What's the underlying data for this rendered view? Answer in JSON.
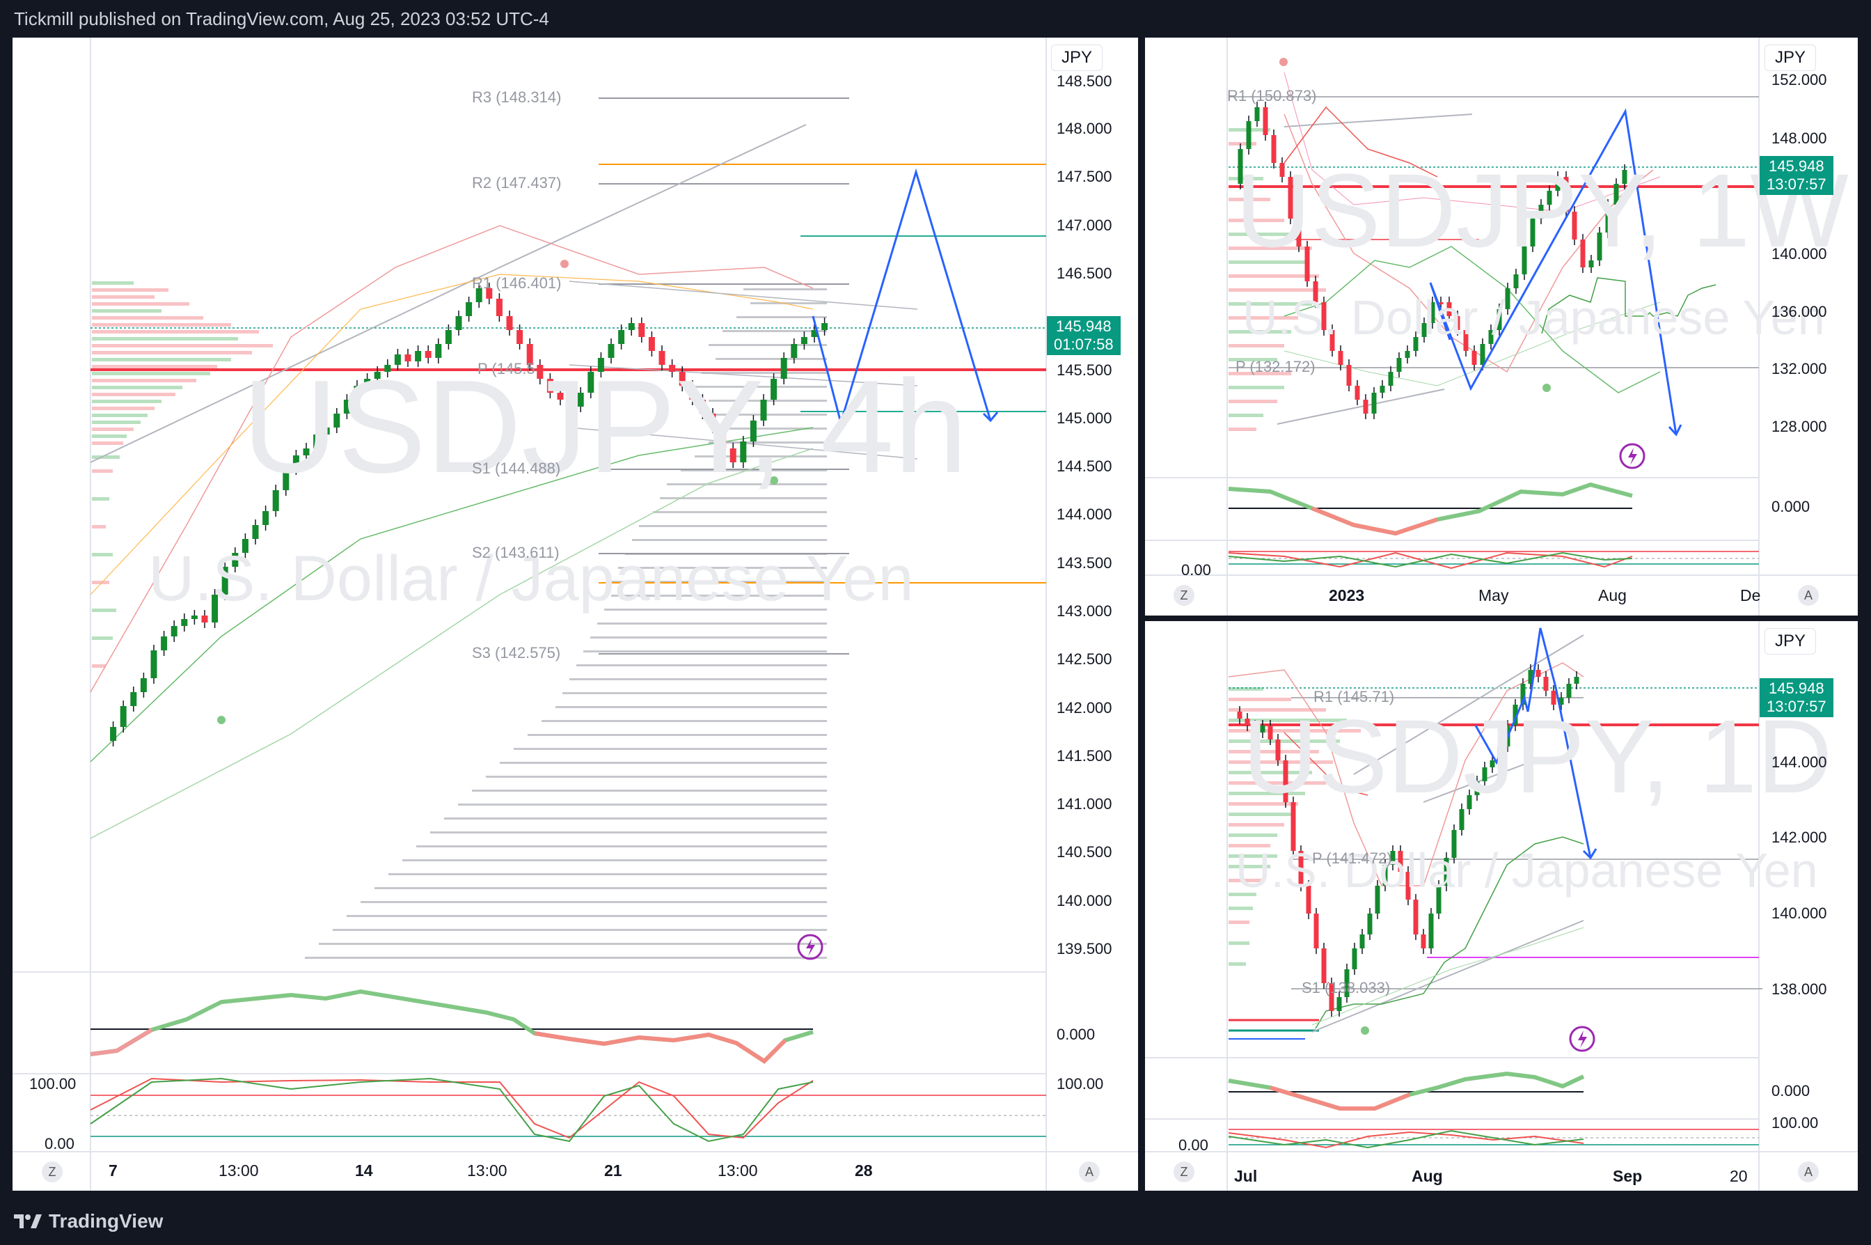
{
  "header": {
    "text": "Tickmill published on TradingView.com, Aug 25, 2023 03:52 UTC-4"
  },
  "footer": {
    "brand": "TradingView"
  },
  "colors": {
    "bull": "#089981",
    "candle_up": "#138a2d",
    "candle_down": "#f23645",
    "projection": "#2962ff",
    "support_line": "#f23645"
  },
  "left": {
    "currency": "JPY",
    "watermark_symbol": "USDJPY, 4h",
    "watermark_name": "U.S. Dollar / Japanese Yen",
    "price_axis": [
      "148.500",
      "148.000",
      "147.500",
      "147.000",
      "146.500",
      "145.948",
      "145.500",
      "145.000",
      "144.500",
      "144.000",
      "143.500",
      "143.000",
      "142.500",
      "142.000",
      "141.500",
      "141.000",
      "140.500",
      "140.000",
      "139.500"
    ],
    "last_price": "145.948",
    "countdown": "01:07:58",
    "pivots": [
      "R3 (148.314)",
      "R2 (147.437)",
      "R1 (146.401)",
      "P (145.5",
      "S1 (144.488)",
      "S2 (143.611)",
      "S3 (142.575)"
    ],
    "time_axis": [
      "7",
      "13:00",
      "14",
      "13:00",
      "21",
      "13:00",
      "28"
    ],
    "macd_zero": "0.000",
    "stoch_top": "100.00",
    "stoch_bottom": "0.00",
    "stoch_top_right": "100.00",
    "z_label": "Z",
    "a_label": "A"
  },
  "weekly": {
    "currency": "JPY",
    "watermark_symbol": "USDJPY, 1W",
    "watermark_name": "U.S. Dollar / Japanese Yen",
    "price_axis": [
      "152.000",
      "148.000",
      "145.948",
      "140.000",
      "136.000",
      "132.000",
      "128.000"
    ],
    "last_price": "145.948",
    "countdown": "13:07:57",
    "pivots": [
      "R1 (150.873)",
      "P (132.172)"
    ],
    "time_axis": [
      "2023",
      "May",
      "Aug",
      "De"
    ],
    "macd_zero": "0.000",
    "stoch_zero": "0.00",
    "z_label": "Z",
    "a_label": "A"
  },
  "daily": {
    "currency": "JPY",
    "watermark_symbol": "USDJPY, 1D",
    "watermark_name": "U.S. Dollar / Japanese Yen",
    "price_axis": [
      "145.948",
      "144.000",
      "142.000",
      "140.000",
      "138.000"
    ],
    "last_price": "145.948",
    "countdown": "13:07:57",
    "pivots": [
      "R1 (145.71)",
      "P (141.472)",
      "S1 (138.033)"
    ],
    "time_axis": [
      "Jul",
      "Aug",
      "Sep",
      "20"
    ],
    "macd_zero": "0.000",
    "stoch_top": "100.00",
    "stoch_zero": "0.00",
    "z_label": "Z",
    "a_label": "A"
  }
}
